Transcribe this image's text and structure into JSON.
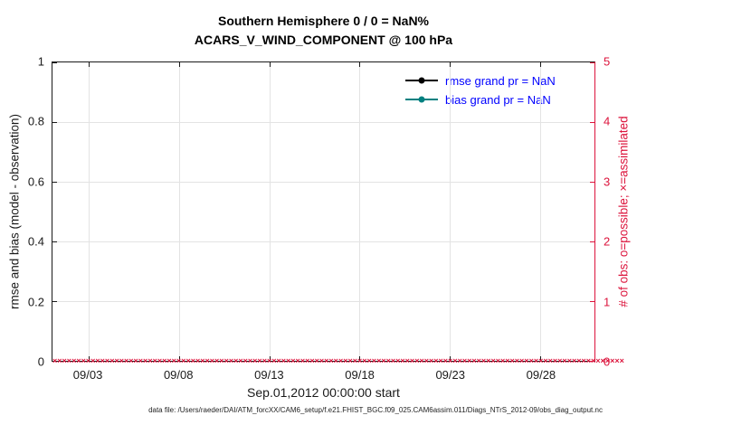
{
  "chart_data": {
    "type": "line",
    "title": "Southern Hemisphere 0 / 0 = NaN%",
    "subtitle": "ACARS_V_WIND_COMPONENT @ 100 hPa",
    "xlabel": "Sep.01,2012 00:00:00 start",
    "ylabel_left": "rmse and bias (model - observation)",
    "ylabel_right": "# of obs: o=possible; ×=assimilated",
    "xlim_days": [
      0,
      30
    ],
    "x_tick_days": [
      2,
      7,
      12,
      17,
      22,
      27
    ],
    "x_ticks": [
      "09/03",
      "09/08",
      "09/13",
      "09/18",
      "09/23",
      "09/28"
    ],
    "ylim_left": [
      0,
      1
    ],
    "y_tick_values_left": [
      0,
      0.2,
      0.4,
      0.6,
      0.8,
      1
    ],
    "y_ticks_left": [
      "0",
      "0.2",
      "0.4",
      "0.6",
      "0.8",
      "1"
    ],
    "ylim_right": [
      0,
      5
    ],
    "y_tick_values_right": [
      0,
      1,
      2,
      3,
      4,
      5
    ],
    "y_ticks_right": [
      "0",
      "1",
      "2",
      "3",
      "4",
      "5"
    ],
    "grid": true,
    "legend_position": "top-right-inside",
    "series": [
      {
        "name": "rmse grand pr = NaN",
        "color": "#000000",
        "values": []
      },
      {
        "name": "bias grand pr = NaN",
        "color": "#008080",
        "values": []
      }
    ],
    "obs_counts": {
      "assimilated_marker": "×",
      "assimilated_value_constant": 0,
      "marker_count": 120,
      "color": "#DC143C"
    }
  },
  "colors": {
    "axis": "#1a1a1a",
    "grid": "#e3e3e3",
    "right_axis": "#DC143C",
    "legend_text": "#0000ff"
  },
  "footer": "data file: /Users/raeder/DAI/ATM_forcXX/CAM6_setup/f.e21.FHIST_BGC.f09_025.CAM6assim.011/Diags_NTrS_2012-09/obs_diag_output.nc"
}
